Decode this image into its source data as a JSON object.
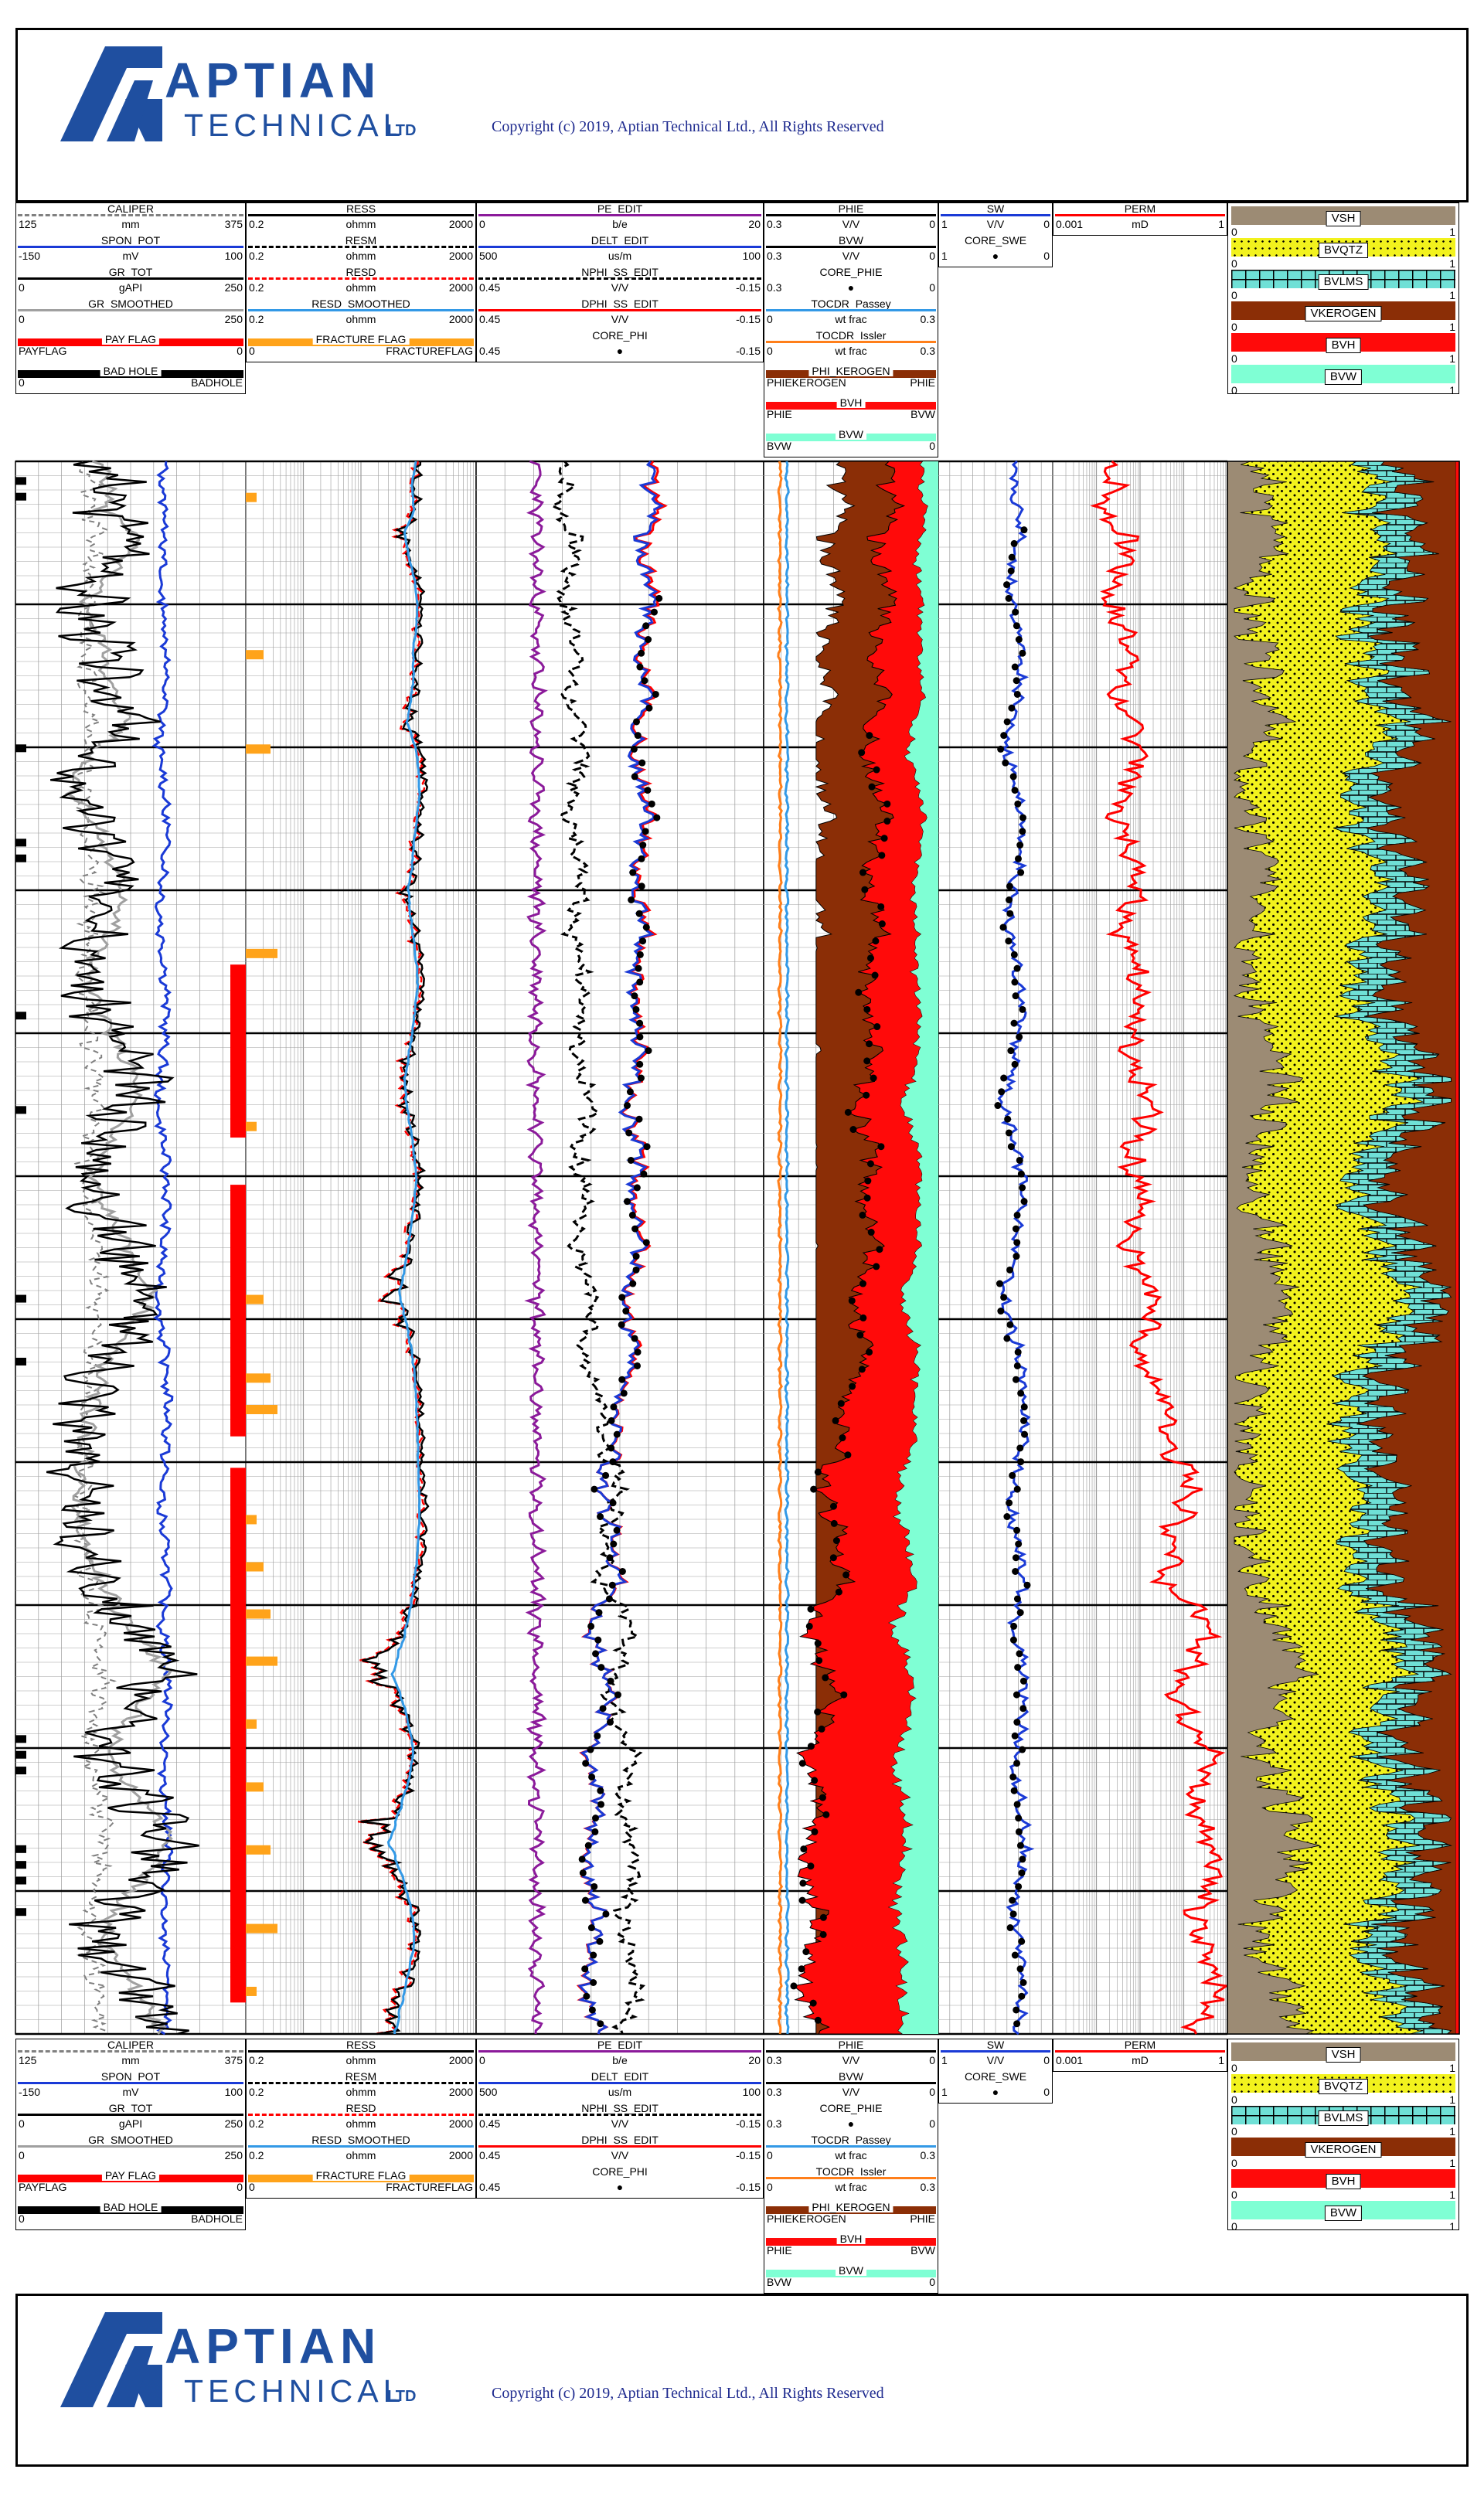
{
  "copyright": "Copyright (c) 2019, Aptian Technical Ltd., All Rights Reserved",
  "logo": {
    "word1": "APTIAN",
    "word2": "TECHNICAL",
    "suffix": "LTD"
  },
  "colors": {
    "brand": "#1f4fa0",
    "shale": "#9c8b74",
    "quartz": "#f2f21d",
    "lime": "#6fe0d6",
    "kerogen": "#8b2e06",
    "hydrocarbon": "#ff0a0a",
    "water": "#7fffd4",
    "fracture": "#ffa31a"
  },
  "tracks": [
    {
      "id": "t1",
      "curves": [
        {
          "name": "CALIPER",
          "min": "125",
          "unit": "mm",
          "max": "375",
          "color": "#808080",
          "style": "dashed"
        },
        {
          "name": "SPON_POT",
          "min": "-150",
          "unit": "mV",
          "max": "100",
          "color": "#1a3ad6",
          "style": "solid"
        },
        {
          "name": "GR_TOT",
          "min": "0",
          "unit": "gAPI",
          "max": "250",
          "color": "#000000",
          "style": "solid"
        },
        {
          "name": "GR_SMOOTHED",
          "min": "0",
          "unit": "",
          "max": "250",
          "color": "#a0a0a0",
          "style": "solid"
        },
        {
          "name": "PAY FLAG",
          "min": "PAYFLAG",
          "unit": "",
          "max": "0",
          "color": "#ff0000",
          "style": "fill"
        },
        {
          "name": "BAD HOLE",
          "min": "0",
          "unit": "",
          "max": "BADHOLE",
          "color": "#000000",
          "style": "fill"
        }
      ]
    },
    {
      "id": "t2",
      "curves": [
        {
          "name": "RESS",
          "min": "0.2",
          "unit": "ohmm",
          "max": "2000",
          "color": "#000000",
          "style": "solid"
        },
        {
          "name": "RESM",
          "min": "0.2",
          "unit": "ohmm",
          "max": "2000",
          "color": "#000000",
          "style": "dashed"
        },
        {
          "name": "RESD",
          "min": "0.2",
          "unit": "ohmm",
          "max": "2000",
          "color": "#ff0000",
          "style": "dashed"
        },
        {
          "name": "RESD_SMOOTHED",
          "min": "0.2",
          "unit": "ohmm",
          "max": "2000",
          "color": "#3399e6",
          "style": "solid"
        },
        {
          "name": "FRACTURE FLAG",
          "min": "0",
          "unit": "",
          "max": "FRACTUREFLAG",
          "color": "#ffa31a",
          "style": "fill"
        }
      ]
    },
    {
      "id": "t3",
      "curves": [
        {
          "name": "PE_EDIT",
          "min": "0",
          "unit": "b/e",
          "max": "20",
          "color": "#8b1a9a",
          "style": "solid"
        },
        {
          "name": "DELT_EDIT",
          "min": "500",
          "unit": "us/m",
          "max": "100",
          "color": "#1a3ad6",
          "style": "solid"
        },
        {
          "name": "NPHI_SS_EDIT",
          "min": "0.45",
          "unit": "V/V",
          "max": "-0.15",
          "color": "#000000",
          "style": "dashed"
        },
        {
          "name": "DPHI_SS_EDIT",
          "min": "0.45",
          "unit": "V/V",
          "max": "-0.15",
          "color": "#ff0000",
          "style": "solid"
        },
        {
          "name": "CORE_PHI",
          "min": "0.45",
          "unit": "●",
          "max": "-0.15",
          "color": "#000000",
          "style": "none"
        }
      ]
    },
    {
      "id": "t4",
      "curves": [
        {
          "name": "PHIE",
          "min": "0.3",
          "unit": "V/V",
          "max": "0",
          "color": "#000000",
          "style": "solid"
        },
        {
          "name": "BVW",
          "min": "0.3",
          "unit": "V/V",
          "max": "0",
          "color": "#000000",
          "style": "solid"
        },
        {
          "name": "CORE_PHIE",
          "min": "0.3",
          "unit": "●",
          "max": "0",
          "color": "#000000",
          "style": "none"
        },
        {
          "name": "TOCDR_Passey",
          "min": "0",
          "unit": "wt frac",
          "max": "0.3",
          "color": "#3399e6",
          "style": "solid"
        },
        {
          "name": "TOCDR_Issler",
          "min": "0",
          "unit": "wt frac",
          "max": "0.3",
          "color": "#ff7f1a",
          "style": "solid"
        },
        {
          "name": "PHI_KEROGEN",
          "min": "PHIEKEROGEN",
          "unit": "",
          "max": "PHIE",
          "color": "#8b2e06",
          "style": "fill"
        },
        {
          "name": "BVH",
          "min": "PHIE",
          "unit": "",
          "max": "BVW",
          "color": "#ff0a0a",
          "style": "fill"
        },
        {
          "name": "BVW",
          "min": "BVW",
          "unit": "",
          "max": "0",
          "color": "#7fffd4",
          "style": "fill"
        }
      ]
    },
    {
      "id": "t5",
      "curves": [
        {
          "name": "SW",
          "min": "1",
          "unit": "V/V",
          "max": "0",
          "color": "#1a3ad6",
          "style": "solid"
        },
        {
          "name": "CORE_SWE",
          "min": "1",
          "unit": "●",
          "max": "0",
          "color": "#000000",
          "style": "none"
        }
      ]
    },
    {
      "id": "t6",
      "curves": [
        {
          "name": "PERM",
          "min": "0.001",
          "unit": "mD",
          "max": "1",
          "color": "#ff0000",
          "style": "solid"
        }
      ]
    },
    {
      "id": "t7",
      "curves": [
        {
          "name": "VSH",
          "min": "0",
          "max": "1",
          "color": "#9c8b74"
        },
        {
          "name": "BVQTZ",
          "min": "0",
          "max": "1",
          "color": "#f2f21d"
        },
        {
          "name": "BVLMS",
          "min": "0",
          "max": "1",
          "color": "#6fe0d6"
        },
        {
          "name": "VKEROGEN",
          "min": "0",
          "max": "1",
          "color": "#8b2e06"
        },
        {
          "name": "BVH",
          "min": "0",
          "max": "1",
          "color": "#ff0a0a"
        },
        {
          "name": "BVW",
          "min": "0",
          "max": "1",
          "color": "#7fffd4"
        }
      ]
    }
  ],
  "chart_data": {
    "type": "line",
    "gamma_ray": [
      88,
      104,
      96,
      132,
      118,
      92,
      78,
      84,
      101,
      96,
      110,
      124,
      88,
      70,
      66,
      82,
      95,
      104,
      120,
      112,
      98,
      84,
      76,
      90,
      104,
      118,
      132,
      126,
      110,
      96,
      84,
      92,
      108,
      120,
      134,
      148,
      130,
      112,
      96,
      88,
      80,
      76,
      74,
      70,
      64,
      72,
      80,
      94,
      108,
      128,
      150,
      164,
      140,
      118,
      98,
      110,
      134,
      156,
      170,
      150,
      126,
      104,
      92,
      110,
      130,
      146,
      160
    ],
    "porosity_v_v": [
      0.08,
      0.09,
      0.07,
      0.1,
      0.11,
      0.09,
      0.08,
      0.1,
      0.12,
      0.1,
      0.09,
      0.11,
      0.13,
      0.12,
      0.1,
      0.09,
      0.11,
      0.12,
      0.13,
      0.11,
      0.1,
      0.12,
      0.13,
      0.12,
      0.11,
      0.1,
      0.12,
      0.14,
      0.13,
      0.11,
      0.12,
      0.13,
      0.12,
      0.11,
      0.13,
      0.15,
      0.14,
      0.12,
      0.13,
      0.15,
      0.17,
      0.16,
      0.18,
      0.2,
      0.19,
      0.17,
      0.18,
      0.16,
      0.2,
      0.22,
      0.21,
      0.19,
      0.18,
      0.2,
      0.23,
      0.22,
      0.2,
      0.21,
      0.23,
      0.24,
      0.22,
      0.2,
      0.21,
      0.23,
      0.24,
      0.22,
      0.2
    ],
    "water_saturation_v_v": [
      0.32,
      0.35,
      0.3,
      0.28,
      0.34,
      0.38,
      0.33,
      0.3,
      0.27,
      0.29,
      0.31,
      0.36,
      0.42,
      0.34,
      0.3,
      0.28,
      0.26,
      0.3,
      0.35,
      0.4,
      0.36,
      0.32,
      0.29,
      0.27,
      0.3,
      0.33,
      0.38,
      0.44,
      0.36,
      0.3,
      0.28,
      0.26,
      0.29,
      0.33,
      0.37,
      0.42,
      0.38,
      0.32,
      0.28,
      0.26,
      0.24,
      0.27,
      0.3,
      0.34,
      0.38,
      0.32,
      0.28,
      0.26,
      0.3,
      0.34,
      0.28,
      0.26,
      0.24,
      0.27,
      0.3,
      0.33,
      0.29,
      0.26,
      0.24,
      0.27,
      0.31,
      0.35,
      0.3,
      0.27,
      0.25,
      0.28,
      0.32
    ]
  }
}
